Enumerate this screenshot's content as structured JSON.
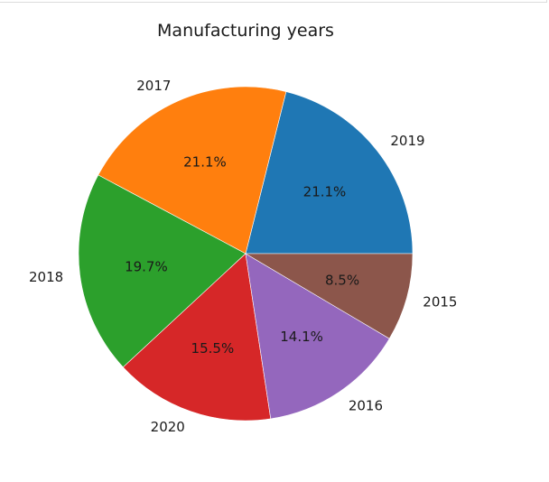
{
  "chart_data": {
    "type": "pie",
    "title": "Manufacturing years",
    "slices": [
      {
        "label": "2019",
        "percent": 21.1,
        "pct_text": "21.1%",
        "color": "#1f77b4"
      },
      {
        "label": "2017",
        "percent": 21.1,
        "pct_text": "21.1%",
        "color": "#ff7f0e"
      },
      {
        "label": "2018",
        "percent": 19.7,
        "pct_text": "19.7%",
        "color": "#2ca02c"
      },
      {
        "label": "2020",
        "percent": 15.5,
        "pct_text": "15.5%",
        "color": "#d62728"
      },
      {
        "label": "2016",
        "percent": 14.1,
        "pct_text": "14.1%",
        "color": "#9467bd"
      },
      {
        "label": "2015",
        "percent": 8.5,
        "pct_text": "8.5%",
        "color": "#8c564b"
      }
    ]
  }
}
